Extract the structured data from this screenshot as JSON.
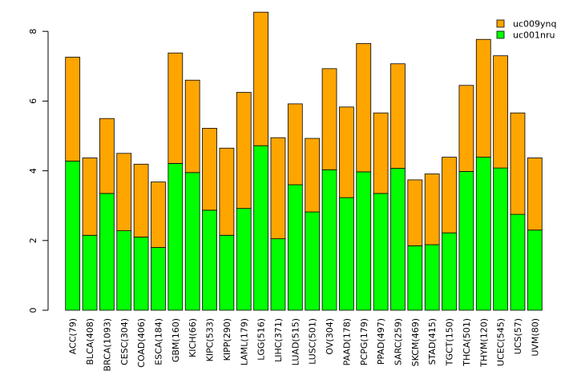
{
  "chart_data": {
    "type": "bar",
    "stacked": true,
    "categories": [
      "ACC(79)",
      "BLCA(408)",
      "BRCA(1093)",
      "CESC(304)",
      "COAD(406)",
      "ESCA(184)",
      "GBM(160)",
      "KICH(66)",
      "KIPC(533)",
      "KIPP(290)",
      "LAML(179)",
      "LGG(516)",
      "LIHC(371)",
      "LUAD(515)",
      "LUSC(501)",
      "OV(304)",
      "PAAD(178)",
      "PCPG(179)",
      "PPAD(497)",
      "SARC(259)",
      "SKCM(469)",
      "STAD(415)",
      "TGCT(150)",
      "THCA(501)",
      "THYM(120)",
      "UCEC(545)",
      "UCS(57)",
      "UVM(80)"
    ],
    "series": [
      {
        "name": "uc001nru",
        "color": "#00ff00",
        "values": [
          4.28,
          2.15,
          3.35,
          2.28,
          2.1,
          1.8,
          4.21,
          3.95,
          2.87,
          2.15,
          2.92,
          4.72,
          2.05,
          3.6,
          2.82,
          4.03,
          3.23,
          3.97,
          3.35,
          4.07,
          1.85,
          1.88,
          2.22,
          3.98,
          4.39,
          4.08,
          2.75,
          2.3
        ]
      },
      {
        "name": "uc009ynq",
        "color": "#ffa500",
        "values": [
          2.98,
          2.22,
          2.15,
          2.22,
          2.09,
          1.88,
          3.17,
          2.65,
          2.35,
          2.5,
          3.33,
          3.83,
          2.9,
          2.32,
          2.11,
          2.9,
          2.6,
          3.68,
          2.31,
          3.0,
          1.89,
          2.03,
          2.17,
          2.47,
          3.38,
          3.22,
          2.91,
          2.07
        ]
      }
    ],
    "ylim": [
      0,
      8.6
    ],
    "yticks": [
      0,
      2,
      4,
      6,
      8
    ],
    "title": "",
    "xlabel": "",
    "ylabel": "",
    "grid": false,
    "legend": {
      "position": "top-right",
      "order": [
        "uc009ynq",
        "uc001nru"
      ]
    }
  }
}
